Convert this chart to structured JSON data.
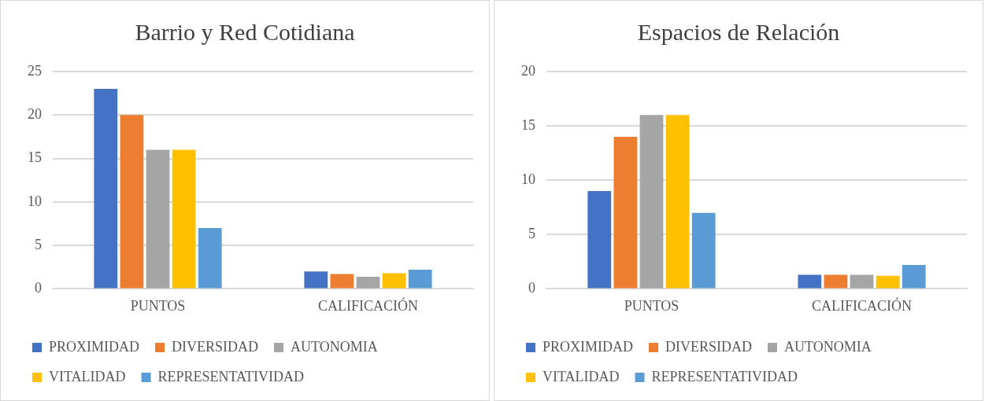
{
  "chart_data": [
    {
      "type": "bar",
      "title": "Barrio y Red Cotidiana",
      "categories": [
        "PUNTOS",
        "CALIFICACIÓN"
      ],
      "series": [
        {
          "name": "PROXIMIDAD",
          "color": "#4472c4",
          "values": [
            23,
            2.0
          ]
        },
        {
          "name": "DIVERSIDAD",
          "color": "#ed7d31",
          "values": [
            20,
            1.7
          ]
        },
        {
          "name": "AUTONOMIA",
          "color": "#a5a5a5",
          "values": [
            16,
            1.4
          ]
        },
        {
          "name": "VITALIDAD",
          "color": "#ffc000",
          "values": [
            16,
            1.8
          ]
        },
        {
          "name": "REPRESENTATIVIDAD",
          "color": "#5b9bd5",
          "values": [
            7,
            2.2
          ]
        }
      ],
      "ylim": [
        0,
        25
      ],
      "yticks": [
        0,
        5,
        10,
        15,
        20,
        25
      ],
      "grid": "y",
      "legend": "bottom"
    },
    {
      "type": "bar",
      "title": "Espacios de Relación",
      "categories": [
        "PUNTOS",
        "CALIFICACIÓN"
      ],
      "series": [
        {
          "name": "PROXIMIDAD",
          "color": "#4472c4",
          "values": [
            9,
            1.3
          ]
        },
        {
          "name": "DIVERSIDAD",
          "color": "#ed7d31",
          "values": [
            14,
            1.3
          ]
        },
        {
          "name": "AUTONOMIA",
          "color": "#a5a5a5",
          "values": [
            16,
            1.3
          ]
        },
        {
          "name": "VITALIDAD",
          "color": "#ffc000",
          "values": [
            16,
            1.2
          ]
        },
        {
          "name": "REPRESENTATIVIDAD",
          "color": "#5b9bd5",
          "values": [
            7,
            2.2
          ]
        }
      ],
      "ylim": [
        0,
        20
      ],
      "yticks": [
        0,
        5,
        10,
        15,
        20
      ],
      "grid": "y",
      "legend": "bottom"
    }
  ]
}
